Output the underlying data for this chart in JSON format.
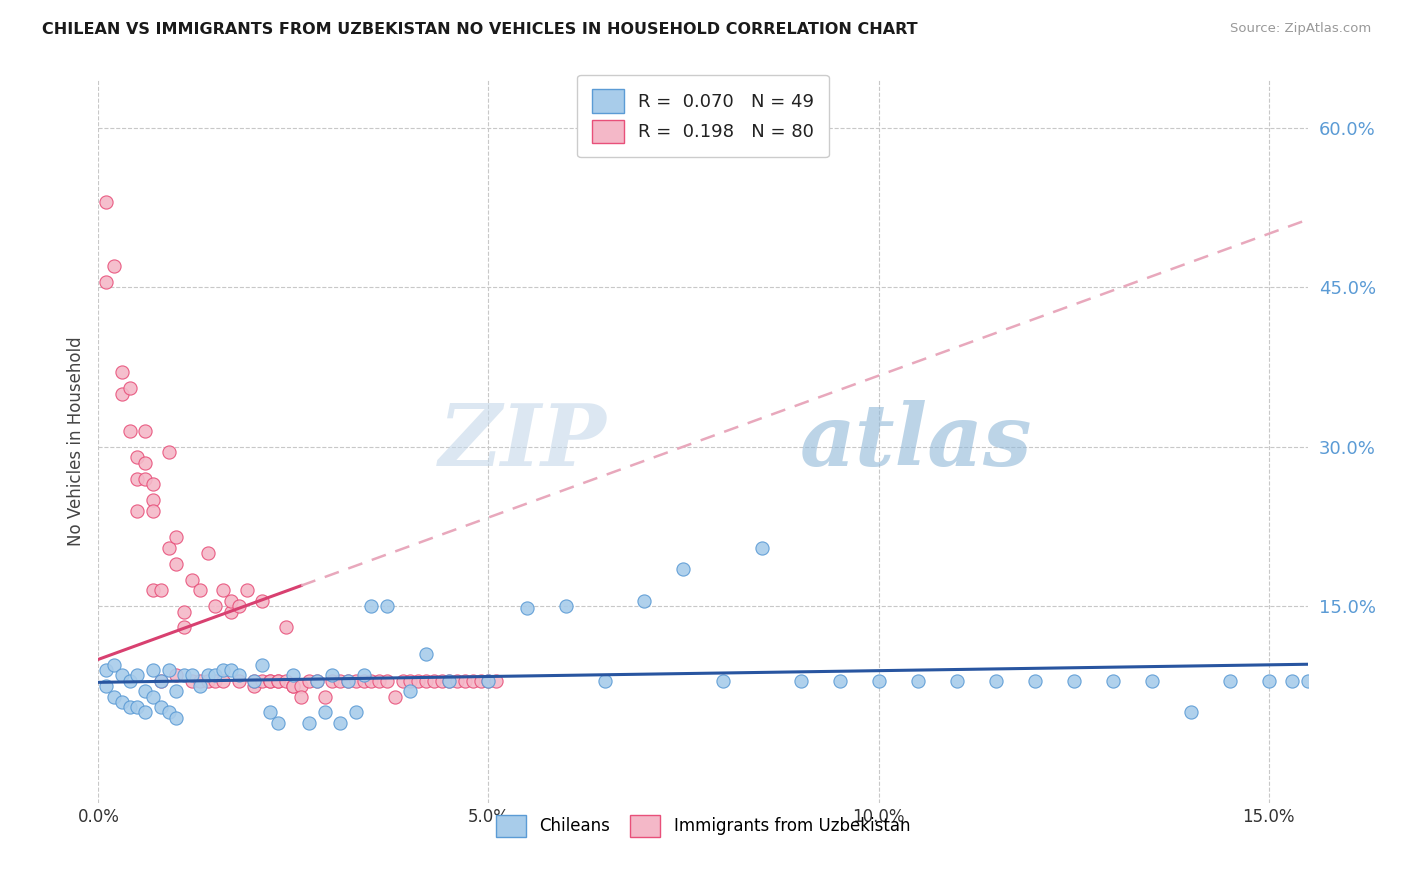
{
  "title": "CHILEAN VS IMMIGRANTS FROM UZBEKISTAN NO VEHICLES IN HOUSEHOLD CORRELATION CHART",
  "source": "Source: ZipAtlas.com",
  "ylabel": "No Vehicles in Household",
  "ytick_labels": [
    "15.0%",
    "30.0%",
    "45.0%",
    "60.0%"
  ],
  "ytick_values": [
    0.15,
    0.3,
    0.45,
    0.6
  ],
  "xtick_positions": [
    0.0,
    0.05,
    0.1,
    0.15
  ],
  "xtick_labels": [
    "0.0%",
    "5.0%",
    "10.0%",
    "15.0%"
  ],
  "xmin": 0.0,
  "xmax": 0.155,
  "ymin": -0.035,
  "ymax": 0.645,
  "watermark_zip": "ZIP",
  "watermark_atlas": "atlas",
  "color_chilean_fill": "#A8CCEA",
  "color_chilean_edge": "#5B9BD5",
  "color_uzbek_fill": "#F4B8C8",
  "color_uzbek_edge": "#E8507A",
  "color_line_chilean": "#2855A0",
  "color_line_uzbek_solid": "#D84070",
  "color_line_uzbek_dash": "#E8A8BC",
  "chilean_x": [
    0.001,
    0.001,
    0.002,
    0.002,
    0.003,
    0.003,
    0.004,
    0.004,
    0.005,
    0.005,
    0.006,
    0.006,
    0.007,
    0.007,
    0.008,
    0.008,
    0.009,
    0.009,
    0.01,
    0.01,
    0.011,
    0.012,
    0.013,
    0.014,
    0.015,
    0.016,
    0.017,
    0.018,
    0.02,
    0.021,
    0.022,
    0.023,
    0.025,
    0.027,
    0.028,
    0.029,
    0.03,
    0.031,
    0.032,
    0.033,
    0.034,
    0.035,
    0.037,
    0.04,
    0.042,
    0.045,
    0.05,
    0.055,
    0.06,
    0.065,
    0.07,
    0.075,
    0.08,
    0.085,
    0.09,
    0.095,
    0.1,
    0.105,
    0.11,
    0.115,
    0.12,
    0.125,
    0.13,
    0.135,
    0.14,
    0.145,
    0.15,
    0.153,
    0.155
  ],
  "chilean_y": [
    0.09,
    0.075,
    0.095,
    0.065,
    0.085,
    0.06,
    0.08,
    0.055,
    0.085,
    0.055,
    0.07,
    0.05,
    0.09,
    0.065,
    0.08,
    0.055,
    0.09,
    0.05,
    0.07,
    0.045,
    0.085,
    0.085,
    0.075,
    0.085,
    0.085,
    0.09,
    0.09,
    0.085,
    0.08,
    0.095,
    0.05,
    0.04,
    0.085,
    0.04,
    0.08,
    0.05,
    0.085,
    0.04,
    0.08,
    0.05,
    0.085,
    0.15,
    0.15,
    0.07,
    0.105,
    0.08,
    0.08,
    0.148,
    0.15,
    0.08,
    0.155,
    0.185,
    0.08,
    0.205,
    0.08,
    0.08,
    0.08,
    0.08,
    0.08,
    0.08,
    0.08,
    0.08,
    0.08,
    0.08,
    0.05,
    0.08,
    0.08,
    0.08,
    0.08
  ],
  "uzbek_x": [
    0.001,
    0.001,
    0.002,
    0.003,
    0.003,
    0.004,
    0.004,
    0.005,
    0.005,
    0.005,
    0.006,
    0.006,
    0.006,
    0.007,
    0.007,
    0.007,
    0.007,
    0.008,
    0.008,
    0.009,
    0.009,
    0.01,
    0.01,
    0.01,
    0.011,
    0.011,
    0.012,
    0.012,
    0.013,
    0.013,
    0.014,
    0.014,
    0.015,
    0.015,
    0.016,
    0.016,
    0.017,
    0.017,
    0.018,
    0.018,
    0.019,
    0.02,
    0.02,
    0.021,
    0.021,
    0.022,
    0.022,
    0.023,
    0.023,
    0.024,
    0.024,
    0.025,
    0.025,
    0.026,
    0.026,
    0.027,
    0.028,
    0.029,
    0.03,
    0.031,
    0.032,
    0.033,
    0.034,
    0.035,
    0.036,
    0.037,
    0.038,
    0.039,
    0.04,
    0.041,
    0.042,
    0.043,
    0.044,
    0.045,
    0.046,
    0.047,
    0.048,
    0.049,
    0.05,
    0.051
  ],
  "uzbek_y": [
    0.53,
    0.455,
    0.47,
    0.37,
    0.35,
    0.355,
    0.315,
    0.29,
    0.27,
    0.24,
    0.315,
    0.285,
    0.27,
    0.265,
    0.25,
    0.24,
    0.165,
    0.165,
    0.08,
    0.295,
    0.205,
    0.215,
    0.19,
    0.085,
    0.145,
    0.13,
    0.175,
    0.08,
    0.165,
    0.08,
    0.2,
    0.08,
    0.15,
    0.08,
    0.165,
    0.08,
    0.145,
    0.155,
    0.15,
    0.08,
    0.165,
    0.075,
    0.08,
    0.08,
    0.155,
    0.08,
    0.08,
    0.08,
    0.08,
    0.13,
    0.08,
    0.075,
    0.075,
    0.075,
    0.065,
    0.08,
    0.08,
    0.065,
    0.08,
    0.08,
    0.08,
    0.08,
    0.08,
    0.08,
    0.08,
    0.08,
    0.065,
    0.08,
    0.08,
    0.08,
    0.08,
    0.08,
    0.08,
    0.08,
    0.08,
    0.08,
    0.08,
    0.08,
    0.08,
    0.08
  ]
}
